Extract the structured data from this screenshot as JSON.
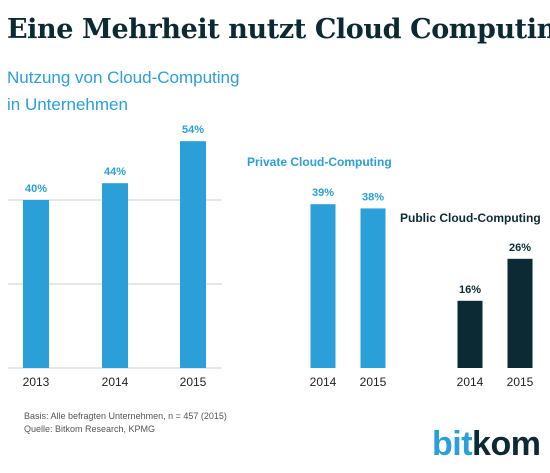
{
  "header": {
    "title": "Eine Mehrheit nutzt Cloud Computing",
    "subtitle_line1": "Nutzung von Cloud-Computing",
    "subtitle_line2": "in Unternehmen"
  },
  "colors": {
    "blue": "#2a9fd8",
    "dark": "#0c2a33",
    "grid": "#bbbbbb"
  },
  "chart_data": [
    {
      "type": "bar",
      "title": "",
      "categories": [
        "2013",
        "2014",
        "2015"
      ],
      "values": [
        40,
        44,
        54
      ],
      "labels": [
        "40%",
        "44%",
        "54%"
      ],
      "ylim": [
        0,
        60
      ],
      "grid": true,
      "color": "#2a9fd8"
    },
    {
      "type": "bar",
      "title": "Private Cloud-Computing",
      "categories": [
        "2014",
        "2015"
      ],
      "values": [
        39,
        38
      ],
      "labels": [
        "39%",
        "38%"
      ],
      "ylim": [
        0,
        60
      ],
      "grid": false,
      "color": "#2a9fd8"
    },
    {
      "type": "bar",
      "title": "Public Cloud-Computing",
      "categories": [
        "2014",
        "2015"
      ],
      "values": [
        16,
        26
      ],
      "labels": [
        "16%",
        "26%"
      ],
      "ylim": [
        0,
        60
      ],
      "grid": false,
      "color": "#0c2a33"
    }
  ],
  "footer": {
    "basis": "Basis: Alle befragten Unternehmen, n = 457 (2015)",
    "source": "Quelle: Bitkom Research, KPMG"
  },
  "logo": {
    "part1": "bit",
    "part2": "kom"
  }
}
